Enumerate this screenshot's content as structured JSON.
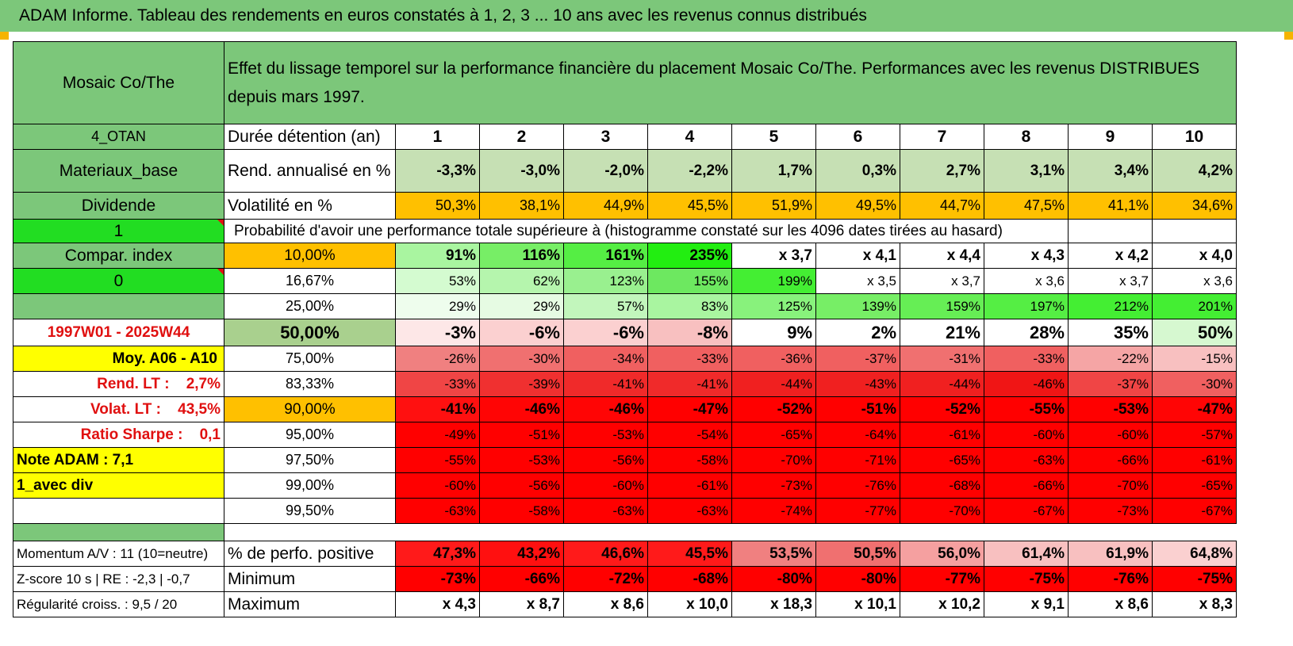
{
  "title": "ADAM Informe. Tableau des rendements en euros constatés à 1, 2, 3 ... 10 ans avec les revenus connus distribués",
  "header": {
    "fund": "Mosaic Co/The",
    "description": "Effet du lissage temporel sur la performance financière du placement Mosaic Co/The. Performances avec les revenus DISTRIBUES depuis mars 1997."
  },
  "left_labels": {
    "code": "4_OTAN",
    "sector": "Materiaux_base",
    "dividende": "Dividende",
    "one": "1",
    "compar": "Compar. index",
    "zero": "0",
    "period": "1997W01 - 2025W44",
    "moy": "Moy. A06 - A10",
    "rend_lt": "Rend. LT :    2,7%",
    "volat_lt": "Volat. LT :    43,5%",
    "sharpe": "Ratio Sharpe :    0,1",
    "note": "Note ADAM : 7,1",
    "avec_div": "1_avec div",
    "momentum": "Momentum A/V : 11 (10=neutre)",
    "zscore": "Z-score 10 s | RE : -2,3 | -0,7",
    "regularite": "Régularité croiss. : 9,5 / 20"
  },
  "row_labels": {
    "duree": "Durée détention (an)",
    "rend": "Rend. annualisé en %",
    "volat": "Volatilité en %",
    "proba": "Probabilité d'avoir une performance totale supérieure à (histogramme constaté sur les 4096 dates tirées au hasard)",
    "pos": "% de perfo. positive",
    "min": "Minimum",
    "max": "Maximum"
  },
  "years": [
    "1",
    "2",
    "3",
    "4",
    "5",
    "6",
    "7",
    "8",
    "9",
    "10"
  ],
  "rend": [
    "-3,3%",
    "-3,0%",
    "-2,0%",
    "-2,2%",
    "1,7%",
    "0,3%",
    "2,7%",
    "3,1%",
    "3,4%",
    "4,2%"
  ],
  "volat": [
    "50,3%",
    "38,1%",
    "44,9%",
    "45,5%",
    "51,9%",
    "49,5%",
    "44,7%",
    "47,5%",
    "41,1%",
    "34,6%"
  ],
  "quantiles": [
    {
      "p": "10,00%",
      "v": [
        "91%",
        "116%",
        "161%",
        "235%",
        "x 3,7",
        "x 4,1",
        "x 4,4",
        "x 4,3",
        "x 4,2",
        "x 4,0"
      ]
    },
    {
      "p": "16,67%",
      "v": [
        "53%",
        "62%",
        "123%",
        "155%",
        "199%",
        "x 3,5",
        "x 3,7",
        "x 3,6",
        "x 3,7",
        "x 3,6"
      ]
    },
    {
      "p": "25,00%",
      "v": [
        "29%",
        "29%",
        "57%",
        "83%",
        "125%",
        "139%",
        "159%",
        "197%",
        "212%",
        "201%"
      ]
    },
    {
      "p": "50,00%",
      "v": [
        "-3%",
        "-6%",
        "-6%",
        "-8%",
        "9%",
        "2%",
        "21%",
        "28%",
        "35%",
        "50%"
      ]
    },
    {
      "p": "75,00%",
      "v": [
        "-26%",
        "-30%",
        "-34%",
        "-33%",
        "-36%",
        "-37%",
        "-31%",
        "-33%",
        "-22%",
        "-15%"
      ]
    },
    {
      "p": "83,33%",
      "v": [
        "-33%",
        "-39%",
        "-41%",
        "-41%",
        "-44%",
        "-43%",
        "-44%",
        "-46%",
        "-37%",
        "-30%"
      ]
    },
    {
      "p": "90,00%",
      "v": [
        "-41%",
        "-46%",
        "-46%",
        "-47%",
        "-52%",
        "-51%",
        "-52%",
        "-55%",
        "-53%",
        "-47%"
      ]
    },
    {
      "p": "95,00%",
      "v": [
        "-49%",
        "-51%",
        "-53%",
        "-54%",
        "-65%",
        "-64%",
        "-61%",
        "-60%",
        "-60%",
        "-57%"
      ]
    },
    {
      "p": "97,50%",
      "v": [
        "-55%",
        "-53%",
        "-56%",
        "-58%",
        "-70%",
        "-71%",
        "-65%",
        "-63%",
        "-66%",
        "-61%"
      ]
    },
    {
      "p": "99,00%",
      "v": [
        "-60%",
        "-56%",
        "-60%",
        "-61%",
        "-73%",
        "-76%",
        "-68%",
        "-66%",
        "-70%",
        "-65%"
      ]
    },
    {
      "p": "99,50%",
      "v": [
        "-63%",
        "-58%",
        "-63%",
        "-63%",
        "-74%",
        "-77%",
        "-70%",
        "-67%",
        "-73%",
        "-67%"
      ]
    }
  ],
  "positive": [
    "47,3%",
    "43,2%",
    "46,6%",
    "45,5%",
    "53,5%",
    "50,5%",
    "56,0%",
    "61,4%",
    "61,9%",
    "64,8%"
  ],
  "minimum": [
    "-73%",
    "-66%",
    "-72%",
    "-68%",
    "-80%",
    "-80%",
    "-77%",
    "-75%",
    "-76%",
    "-75%"
  ],
  "maximum": [
    "x 4,3",
    "x 8,7",
    "x 8,6",
    "x 10,0",
    "x 18,3",
    "x 10,1",
    "x 10,2",
    "x 9,1",
    "x 8,6",
    "x 8,3"
  ],
  "colors": {
    "header_green": "#7cc77a",
    "rend_green": "#c6e0b4",
    "volat_orange": "#ffc000",
    "pale_red": "#f8cbcb",
    "mid_red": "#f07070",
    "strong_red": "#ff0000",
    "bright_green": "#00ee00",
    "light_green": "#a9f5a0"
  }
}
